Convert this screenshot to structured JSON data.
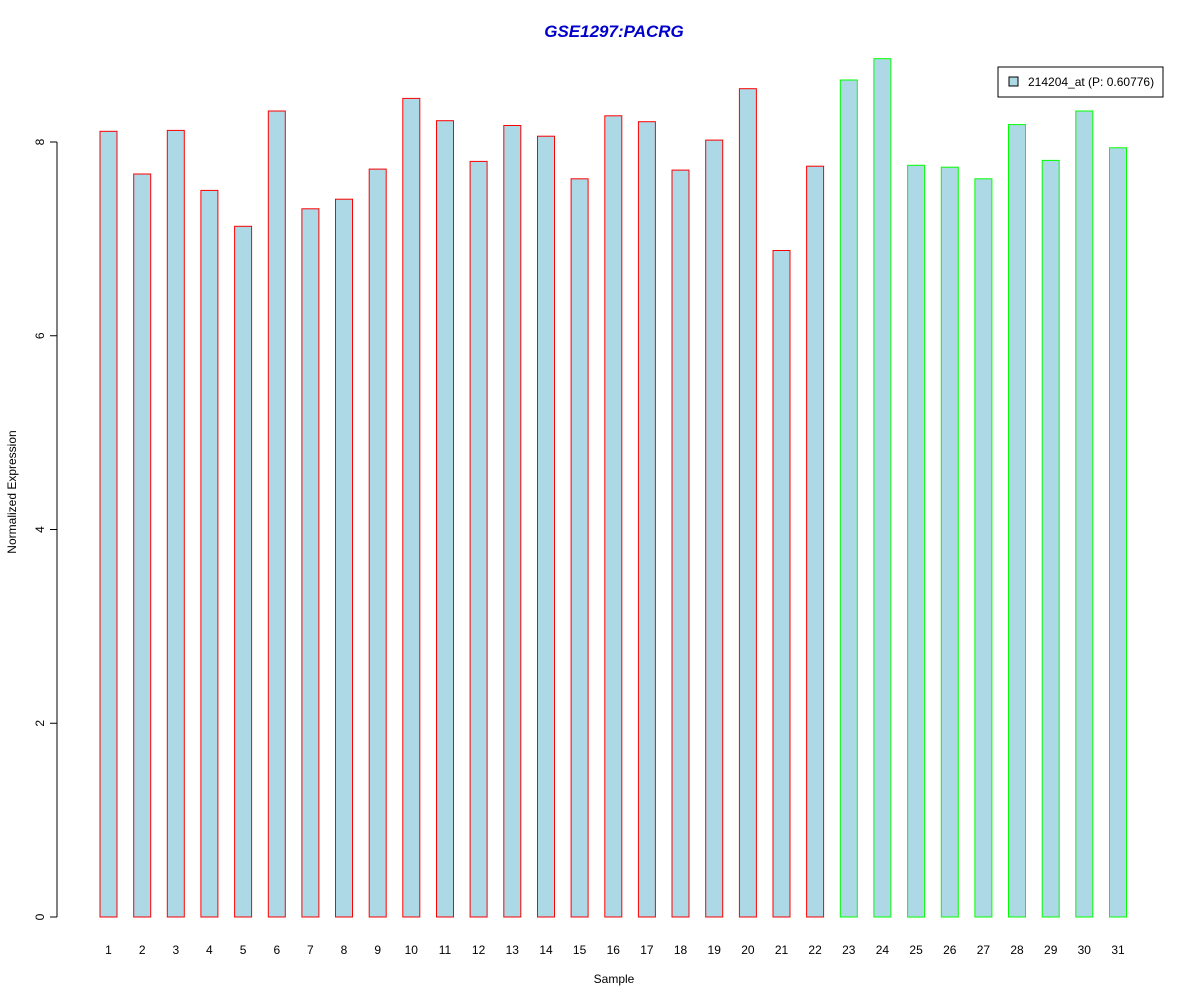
{
  "chart_data": {
    "type": "bar",
    "title": "GSE1297:PACRG",
    "xlabel": "Sample",
    "ylabel": "Normalized Expression",
    "ylim": [
      0,
      8.85
    ],
    "yticks": [
      0,
      2,
      4,
      6,
      8
    ],
    "categories": [
      "1",
      "2",
      "3",
      "4",
      "5",
      "6",
      "7",
      "8",
      "9",
      "10",
      "11",
      "12",
      "13",
      "14",
      "15",
      "16",
      "17",
      "18",
      "19",
      "20",
      "21",
      "22",
      "23",
      "24",
      "25",
      "26",
      "27",
      "28",
      "29",
      "30",
      "31"
    ],
    "values": [
      8.11,
      7.67,
      8.12,
      7.5,
      7.13,
      8.32,
      7.31,
      7.41,
      7.72,
      8.45,
      8.22,
      7.8,
      8.17,
      8.06,
      7.62,
      8.27,
      8.21,
      7.71,
      8.02,
      8.55,
      6.88,
      7.75,
      8.64,
      8.86,
      7.76,
      7.74,
      7.62,
      8.18,
      7.81,
      8.32,
      7.94
    ],
    "groups": [
      "red",
      "red",
      "red",
      "red",
      "red",
      "red",
      "red",
      "red",
      "red",
      "red",
      "red",
      "red",
      "red",
      "red",
      "red",
      "red",
      "red",
      "red",
      "red",
      "red",
      "red",
      "red",
      "green",
      "green",
      "green",
      "green",
      "green",
      "green",
      "green",
      "green",
      "green"
    ],
    "group_colors": {
      "red": "#ff0000",
      "green": "#00ff00"
    },
    "fill_color": "#add8e6",
    "title_color": "#0000cc",
    "legend": {
      "label": "214204_at (P: 0.60776)",
      "position": "top-right"
    }
  }
}
